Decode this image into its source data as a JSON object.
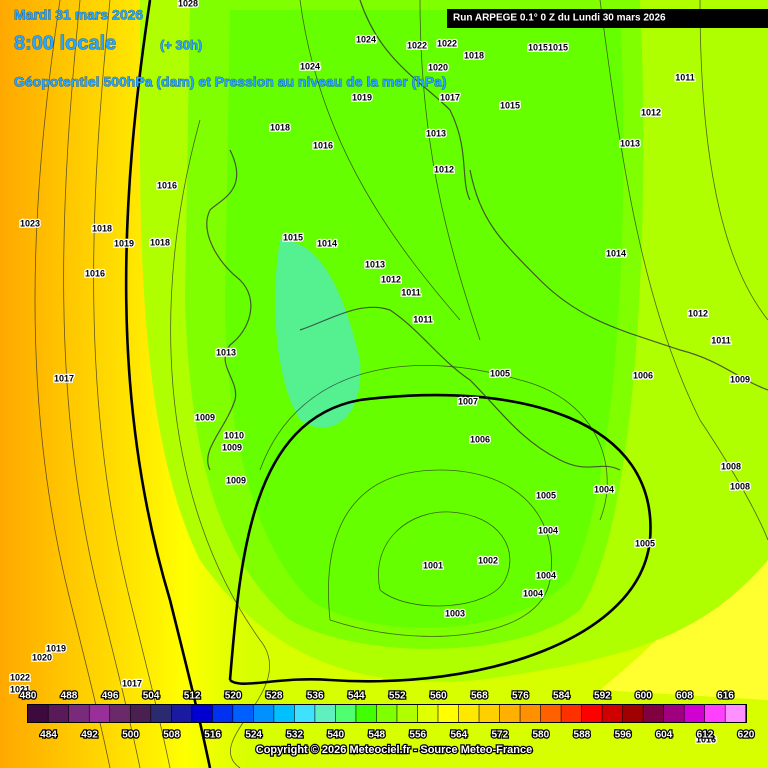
{
  "header": {
    "date": "Mardi 31 mars 2026",
    "time": "8:00 locale",
    "lead_time": "(+ 30h)",
    "description": "Géopotentiel 500hPa (dam) et Pression au niveau de la mer (hPa)",
    "run_info": "Run ARPEGE 0.1° 0 Z du Lundi 30 mars 2026"
  },
  "isobar_labels": [
    "1028",
    "1024",
    "1022",
    "1022",
    "1018",
    "1015",
    "1015",
    "1011",
    "1020",
    "1024",
    "1017",
    "1019",
    "1015",
    "1012",
    "1013",
    "1013",
    "1016",
    "1018",
    "1012",
    "1016",
    "1023",
    "1018",
    "1019",
    "1018",
    "1016",
    "1015",
    "1014",
    "1013",
    "1012",
    "1011",
    "1014",
    "1012",
    "1011",
    "1011",
    "1013",
    "1017",
    "1005",
    "1006",
    "1009",
    "1007",
    "1009",
    "1010",
    "1009",
    "1006",
    "1008",
    "1008",
    "1005",
    "1004",
    "1009",
    "1004",
    "1005",
    "1001",
    "1002",
    "1004",
    "1004",
    "1003",
    "1019",
    "1020",
    "1017",
    "1022",
    "1021",
    "1016"
  ],
  "colorbar": {
    "labels_top": [
      "480",
      "488",
      "496",
      "504",
      "512",
      "520",
      "528",
      "536",
      "544",
      "552",
      "560",
      "568",
      "576",
      "584",
      "592",
      "600",
      "608",
      "616"
    ],
    "labels_bottom": [
      "484",
      "492",
      "500",
      "508",
      "516",
      "524",
      "532",
      "540",
      "548",
      "556",
      "564",
      "572",
      "580",
      "588",
      "596",
      "604",
      "612",
      "620"
    ],
    "colors": [
      "#3d0a3d",
      "#5a1a5a",
      "#7a2a7a",
      "#992f99",
      "#6a2a6a",
      "#4a2050",
      "#2a2a70",
      "#1a1aa0",
      "#0000d0",
      "#0030f0",
      "#0060ff",
      "#0090ff",
      "#00c0ff",
      "#40e0ff",
      "#60f0c0",
      "#50ff70",
      "#40ff00",
      "#80ff00",
      "#b0ff00",
      "#e0ff00",
      "#ffff00",
      "#ffe800",
      "#ffd000",
      "#ffb000",
      "#ff9000",
      "#ff6000",
      "#ff3000",
      "#ff0000",
      "#d00000",
      "#a00000",
      "#800040",
      "#a00080",
      "#d000d0",
      "#ff40ff",
      "#ff90ff"
    ]
  },
  "footer": {
    "copyright": "Copyright © 2026 Meteociel.fr - Source Meteo-France"
  }
}
